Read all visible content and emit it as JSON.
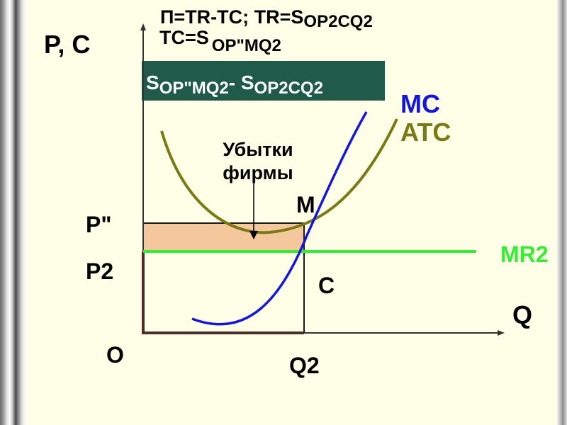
{
  "formulas": {
    "profit_tr_prefix": "П=TR-TC;  TR=S",
    "tr_sub": "OP2CQ2",
    "tc_prefix": "TC=S",
    "tc_sub": "OP\"MQ2"
  },
  "banner": {
    "s1": "S",
    "s1_sub": "OP\"MQ2",
    "minus": "- ",
    "s2": "S",
    "s2_sub": "OP2CQ2",
    "color": "#1f5a4a"
  },
  "axes": {
    "y_label": "P, C",
    "x_label": "Q",
    "origin": "O",
    "q2": "Q2",
    "p_double": "P\"",
    "p2": "P2"
  },
  "points": {
    "m": "M",
    "c": "C"
  },
  "annotation": {
    "line1": "Убытки",
    "line2": "фирмы"
  },
  "curves": {
    "mc": "MC",
    "atc": "ATC",
    "mr2": "MR2"
  },
  "colors": {
    "mc": "#1515e0",
    "atc": "#7a7a14",
    "mr2": "#33ee33",
    "box": "#7a1f1f",
    "loss_fill": "#f5c79d",
    "panel": "#ffffe8"
  }
}
